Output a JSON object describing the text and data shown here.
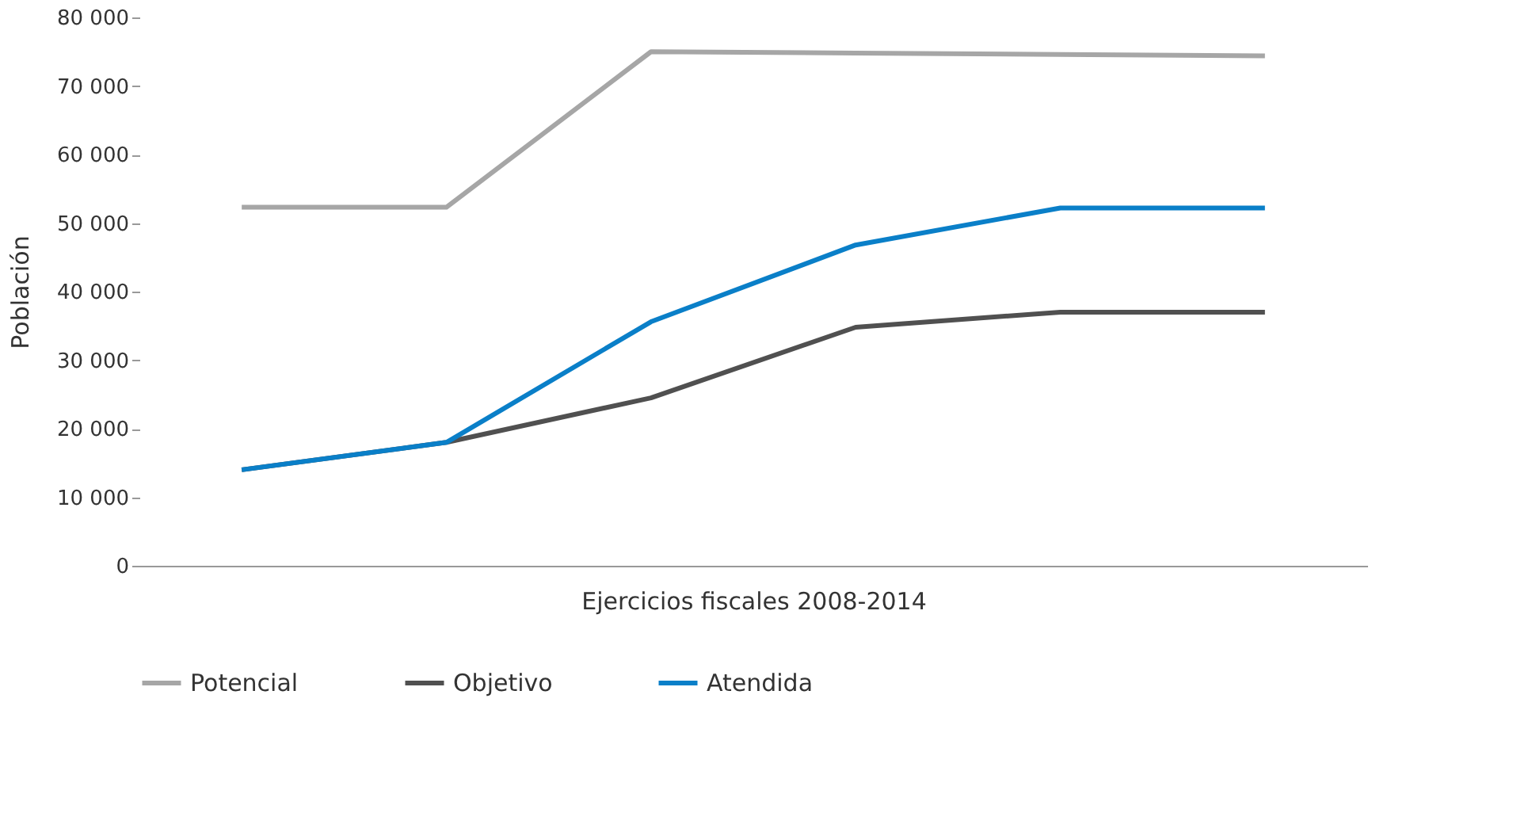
{
  "chart_data": {
    "type": "line",
    "xlabel": "Ejercicios fiscales 2008-2014",
    "ylabel": "Población",
    "categories": [
      null,
      null,
      null,
      null,
      null,
      null
    ],
    "series": [
      {
        "name": "Potencial",
        "color": "#a6a6a6",
        "values": [
          52300,
          52300,
          75000,
          74800,
          74600,
          74400
        ]
      },
      {
        "name": "Objetivo",
        "color": "#505050",
        "values": [
          14000,
          18000,
          24500,
          34800,
          37000,
          37000
        ]
      },
      {
        "name": "Atendida",
        "color": "#0a7fc8",
        "values": [
          14000,
          18000,
          35600,
          46800,
          52200,
          52200
        ]
      }
    ],
    "ylim": [
      0,
      80000
    ],
    "yticks": [
      0,
      {
        "value": 10000,
        "label": "10 000"
      },
      {
        "value": 20000,
        "label": "20 000"
      },
      {
        "value": 30000,
        "label": "30 000"
      },
      {
        "value": 40000,
        "label": "40 000"
      },
      {
        "value": 50000,
        "label": "50 000"
      },
      {
        "value": 60000,
        "label": "60 000"
      },
      {
        "value": 70000,
        "label": "70 000"
      },
      {
        "value": 80000,
        "label": "80 000"
      }
    ],
    "tick_labels": "y",
    "grid": false,
    "legend": "bottom",
    "marker": "none",
    "line_style": "solid"
  }
}
